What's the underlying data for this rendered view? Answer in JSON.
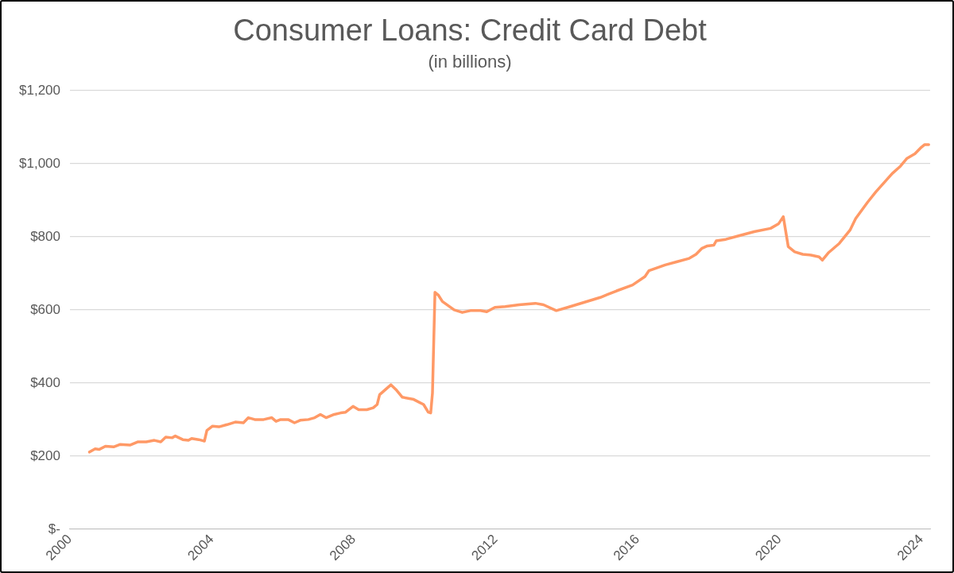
{
  "chart_data": {
    "type": "line",
    "title": "Consumer Loans: Credit Card Debt",
    "subtitle": "(in billions)",
    "x": [
      2000.55,
      2000.71,
      2000.82,
      2001.0,
      2001.23,
      2001.42,
      2001.69,
      2001.92,
      2002.15,
      2002.38,
      2002.56,
      2002.7,
      2002.88,
      2002.97,
      2003.18,
      2003.34,
      2003.43,
      2003.63,
      2003.79,
      2003.86,
      2004.02,
      2004.2,
      2004.43,
      2004.66,
      2004.89,
      2005.03,
      2005.21,
      2005.46,
      2005.69,
      2005.81,
      2005.94,
      2006.15,
      2006.33,
      2006.49,
      2006.72,
      2006.9,
      2007.06,
      2007.22,
      2007.45,
      2007.63,
      2007.77,
      2007.98,
      2008.14,
      2008.37,
      2008.55,
      2008.66,
      2008.73,
      2008.87,
      2009.05,
      2009.19,
      2009.37,
      2009.69,
      2009.97,
      2010.1,
      2010.17,
      2010.22,
      2010.29,
      2010.38,
      2010.5,
      2010.83,
      2011.06,
      2011.29,
      2011.57,
      2011.75,
      2011.98,
      2012.27,
      2012.66,
      2013.12,
      2013.35,
      2013.71,
      2014.03,
      2014.95,
      2015.41,
      2015.86,
      2016.21,
      2016.32,
      2016.78,
      2017.12,
      2017.46,
      2017.65,
      2017.81,
      2017.97,
      2018.15,
      2018.22,
      2018.49,
      2018.83,
      2019.29,
      2019.75,
      2019.98,
      2020.11,
      2020.25,
      2020.43,
      2020.66,
      2020.89,
      2021.12,
      2021.21,
      2021.39,
      2021.69,
      2021.99,
      2022.15,
      2022.49,
      2022.72,
      2022.95,
      2023.18,
      2023.41,
      2023.59,
      2023.82,
      2023.98,
      2024.09,
      2024.21
    ],
    "series": [
      {
        "color": "#ff9966",
        "values": [
          211,
          220,
          218,
          227,
          225,
          232,
          230,
          239,
          239,
          243,
          239,
          252,
          250,
          255,
          245,
          243,
          248,
          245,
          241,
          270,
          282,
          280,
          286,
          293,
          291,
          305,
          300,
          300,
          305,
          295,
          300,
          300,
          291,
          298,
          300,
          305,
          314,
          305,
          314,
          318,
          320,
          336,
          327,
          327,
          332,
          341,
          368,
          380,
          395,
          382,
          361,
          355,
          341,
          320,
          318,
          373,
          648,
          641,
          623,
          600,
          593,
          598,
          598,
          595,
          607,
          609,
          614,
          618,
          614,
          598,
          607,
          634,
          652,
          668,
          691,
          707,
          723,
          732,
          741,
          752,
          768,
          775,
          777,
          789,
          793,
          802,
          814,
          823,
          836,
          855,
          773,
          759,
          752,
          750,
          745,
          736,
          757,
          782,
          818,
          850,
          895,
          923,
          948,
          973,
          993,
          1014,
          1027,
          1043,
          1052,
          1052
        ]
      }
    ],
    "xlim": [
      2000,
      2024.25
    ],
    "xticks": [
      2000,
      2004,
      2008,
      2012,
      2016,
      2020,
      2024
    ],
    "ylim": [
      0,
      1200
    ],
    "yticks": [
      {
        "value": 0,
        "label": "$-"
      },
      {
        "value": 200,
        "label": "$200"
      },
      {
        "value": 400,
        "label": "$400"
      },
      {
        "value": 600,
        "label": "$600"
      },
      {
        "value": 800,
        "label": "$800"
      },
      {
        "value": 1000,
        "label": "$1,000"
      },
      {
        "value": 1200,
        "label": "$1,200"
      }
    ],
    "grid": "y",
    "legend": false,
    "marker": "none",
    "line_style": "solid"
  }
}
